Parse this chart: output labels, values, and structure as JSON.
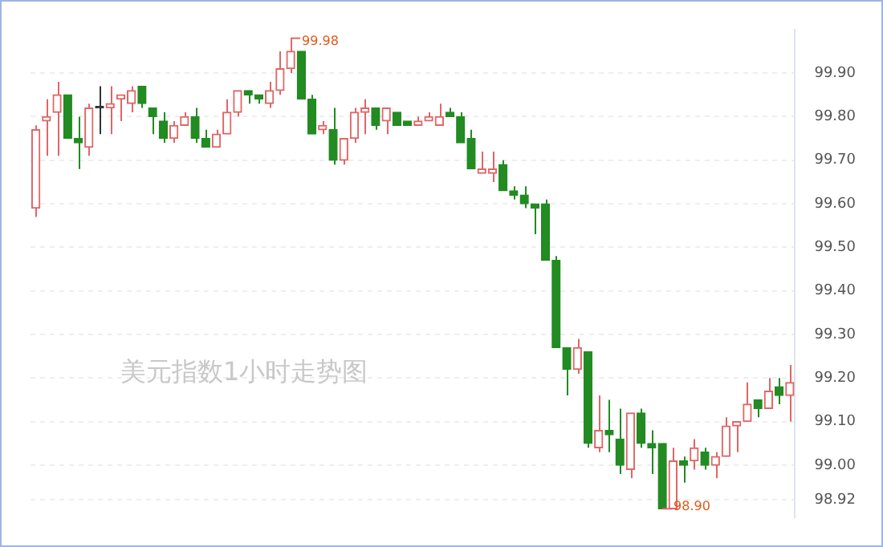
{
  "chart_data": {
    "type": "candlestick",
    "categories": [
      null,
      null,
      null,
      null,
      null,
      null,
      null,
      null,
      null,
      null,
      null,
      null,
      null,
      null,
      null,
      null,
      null,
      null,
      null,
      null,
      null,
      null,
      null,
      null,
      null,
      null,
      null,
      null,
      null,
      null,
      null,
      null,
      null,
      null,
      null,
      null,
      null,
      null,
      null,
      null,
      null,
      null,
      null,
      null,
      null,
      null,
      null,
      null,
      null,
      null,
      null,
      null,
      null,
      null,
      null,
      null,
      null,
      null,
      null,
      null,
      null,
      null,
      null,
      null,
      null,
      null,
      null,
      null,
      null,
      null,
      null,
      null
    ],
    "ohlc": [
      [
        99.59,
        99.78,
        99.57,
        99.77
      ],
      [
        99.79,
        99.84,
        99.71,
        99.8
      ],
      [
        99.81,
        99.88,
        99.71,
        99.85
      ],
      [
        99.85,
        99.85,
        99.75,
        99.75
      ],
      [
        99.75,
        99.8,
        99.68,
        99.74
      ],
      [
        99.73,
        99.83,
        99.71,
        99.82
      ],
      [
        99.82,
        99.87,
        99.76,
        99.82
      ],
      [
        99.82,
        99.87,
        99.76,
        99.83
      ],
      [
        99.84,
        99.85,
        99.79,
        99.85
      ],
      [
        99.83,
        99.87,
        99.81,
        99.86
      ],
      [
        99.87,
        99.87,
        99.82,
        99.83
      ],
      [
        99.82,
        99.82,
        99.76,
        99.8
      ],
      [
        99.79,
        99.81,
        99.74,
        99.75
      ],
      [
        99.75,
        99.79,
        99.74,
        99.78
      ],
      [
        99.78,
        99.81,
        99.78,
        99.8
      ],
      [
        99.8,
        99.82,
        99.74,
        99.75
      ],
      [
        99.75,
        99.77,
        99.73,
        99.73
      ],
      [
        99.73,
        99.77,
        99.73,
        99.76
      ],
      [
        99.76,
        99.84,
        99.76,
        99.81
      ],
      [
        99.81,
        99.86,
        99.8,
        99.86
      ],
      [
        99.86,
        99.86,
        99.83,
        99.85
      ],
      [
        99.85,
        99.85,
        99.83,
        99.84
      ],
      [
        99.83,
        99.88,
        99.82,
        99.86
      ],
      [
        99.86,
        99.95,
        99.85,
        99.91
      ],
      [
        99.91,
        99.98,
        99.9,
        99.95
      ],
      [
        99.95,
        99.95,
        99.84,
        99.84
      ],
      [
        99.84,
        99.85,
        99.76,
        99.76
      ],
      [
        99.77,
        99.79,
        99.76,
        99.78
      ],
      [
        99.77,
        99.82,
        99.69,
        99.7
      ],
      [
        99.7,
        99.75,
        99.69,
        99.75
      ],
      [
        99.75,
        99.82,
        99.74,
        99.81
      ],
      [
        99.81,
        99.84,
        99.76,
        99.82
      ],
      [
        99.82,
        99.82,
        99.77,
        99.78
      ],
      [
        99.79,
        99.82,
        99.76,
        99.82
      ],
      [
        99.81,
        99.81,
        99.78,
        99.78
      ],
      [
        99.79,
        99.79,
        99.78,
        99.78
      ],
      [
        99.78,
        99.8,
        99.78,
        99.79
      ],
      [
        99.79,
        99.81,
        99.79,
        99.8
      ],
      [
        99.78,
        99.83,
        99.78,
        99.8
      ],
      [
        99.81,
        99.82,
        99.8,
        99.8
      ],
      [
        99.8,
        99.81,
        99.74,
        99.74
      ],
      [
        99.75,
        99.77,
        99.68,
        99.68
      ],
      [
        99.67,
        99.72,
        99.67,
        99.68
      ],
      [
        99.67,
        99.72,
        99.65,
        99.68
      ],
      [
        99.69,
        99.7,
        99.63,
        99.63
      ],
      [
        99.63,
        99.64,
        99.61,
        99.62
      ],
      [
        99.62,
        99.64,
        99.59,
        99.6
      ],
      [
        99.6,
        99.6,
        99.53,
        99.59
      ],
      [
        99.6,
        99.61,
        99.47,
        99.47
      ],
      [
        99.47,
        99.48,
        99.27,
        99.27
      ],
      [
        99.27,
        99.27,
        99.16,
        99.22
      ],
      [
        99.22,
        99.29,
        99.21,
        99.27
      ],
      [
        99.26,
        99.26,
        99.04,
        99.05
      ],
      [
        99.04,
        99.16,
        99.03,
        99.08
      ],
      [
        99.08,
        99.15,
        99.03,
        99.07
      ],
      [
        99.06,
        99.13,
        98.98,
        99.0
      ],
      [
        98.99,
        99.12,
        98.97,
        99.12
      ],
      [
        99.12,
        99.13,
        99.04,
        99.05
      ],
      [
        99.05,
        99.08,
        98.98,
        99.04
      ],
      [
        99.05,
        99.05,
        98.9,
        98.9
      ],
      [
        98.9,
        99.04,
        98.9,
        99.01
      ],
      [
        99.01,
        99.02,
        98.96,
        99.0
      ],
      [
        99.01,
        99.06,
        98.99,
        99.04
      ],
      [
        99.03,
        99.04,
        98.99,
        99.0
      ],
      [
        99.0,
        99.03,
        98.97,
        99.02
      ],
      [
        99.02,
        99.11,
        99.02,
        99.09
      ],
      [
        99.09,
        99.1,
        99.03,
        99.1
      ],
      [
        99.1,
        99.19,
        99.1,
        99.14
      ],
      [
        99.15,
        99.15,
        99.11,
        99.13
      ],
      [
        99.13,
        99.2,
        99.13,
        99.17
      ],
      [
        99.18,
        99.2,
        99.14,
        99.16
      ],
      [
        99.16,
        99.23,
        99.1,
        99.19
      ]
    ],
    "colors": [
      "#e06666",
      "#e06666",
      "#e06666",
      "#228b22",
      "#228b22",
      "#e06666",
      "#333333",
      "#e06666",
      "#e06666",
      "#e06666",
      "#228b22",
      "#228b22",
      "#228b22",
      "#e06666",
      "#e06666",
      "#228b22",
      "#228b22",
      "#e06666",
      "#e06666",
      "#e06666",
      "#228b22",
      "#228b22",
      "#e06666",
      "#e06666",
      "#e06666",
      "#228b22",
      "#228b22",
      "#e06666",
      "#228b22",
      "#e06666",
      "#e06666",
      "#e06666",
      "#228b22",
      "#e06666",
      "#228b22",
      "#228b22",
      "#e06666",
      "#e06666",
      "#e06666",
      "#228b22",
      "#228b22",
      "#228b22",
      "#e06666",
      "#e06666",
      "#228b22",
      "#228b22",
      "#228b22",
      "#228b22",
      "#228b22",
      "#228b22",
      "#228b22",
      "#e06666",
      "#228b22",
      "#e06666",
      "#228b22",
      "#228b22",
      "#e06666",
      "#228b22",
      "#228b22",
      "#228b22",
      "#e06666",
      "#228b22",
      "#e06666",
      "#228b22",
      "#e06666",
      "#e06666",
      "#e06666",
      "#e06666",
      "#228b22",
      "#e06666",
      "#228b22",
      "#e06666"
    ],
    "ylim": [
      98.88,
      100.0
    ],
    "yticks": [
      {
        "value": 98.92,
        "label": "98.92"
      },
      {
        "value": 99.0,
        "label": "99.00"
      },
      {
        "value": 99.1,
        "label": "99.10"
      },
      {
        "value": 99.2,
        "label": "99.20"
      },
      {
        "value": 99.3,
        "label": "99.30"
      },
      {
        "value": 99.4,
        "label": "99.40"
      },
      {
        "value": 99.5,
        "label": "99.50"
      },
      {
        "value": 99.6,
        "label": "99.60"
      },
      {
        "value": 99.7,
        "label": "99.70"
      },
      {
        "value": 99.8,
        "label": "99.80"
      },
      {
        "value": 99.9,
        "label": "99.90"
      }
    ],
    "grid": "y",
    "annotations": [
      "美元指数1小时走势图",
      "99.98",
      "98.90"
    ]
  }
}
